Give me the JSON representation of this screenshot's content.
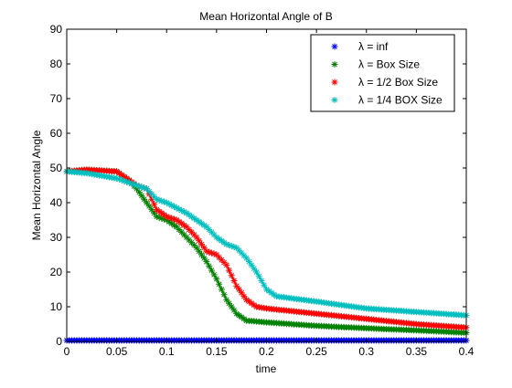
{
  "chart_data": {
    "type": "line",
    "title": "Mean Horizontal Angle of B",
    "xlabel": "time",
    "ylabel": "Mean Horizontal Angle",
    "xlim": [
      0,
      0.4
    ],
    "ylim": [
      0,
      90
    ],
    "xticks": [
      0,
      0.05,
      0.1,
      0.15,
      0.2,
      0.25,
      0.3,
      0.35,
      0.4
    ],
    "xtick_labels": [
      "0",
      "0.05",
      "0.1",
      "0.15",
      "0.2",
      "0.25",
      "0.3",
      "0.35",
      "0.4"
    ],
    "yticks": [
      0,
      10,
      20,
      30,
      40,
      50,
      60,
      70,
      80,
      90
    ],
    "ytick_labels": [
      "0",
      "10",
      "20",
      "30",
      "40",
      "50",
      "60",
      "70",
      "80",
      "90"
    ],
    "grid": false,
    "legend_position": "top-right",
    "marker": "*",
    "series": [
      {
        "name": "λ = inf",
        "color": "#0000ff",
        "x": [
          0,
          0.1,
          0.2,
          0.3,
          0.4
        ],
        "y": [
          0.3,
          0.3,
          0.3,
          0.3,
          0.3
        ]
      },
      {
        "name": "λ = Box Size",
        "color": "#008000",
        "x": [
          0,
          0.02,
          0.05,
          0.06,
          0.07,
          0.08,
          0.09,
          0.1,
          0.11,
          0.12,
          0.13,
          0.14,
          0.15,
          0.16,
          0.17,
          0.18,
          0.2,
          0.25,
          0.3,
          0.35,
          0.4
        ],
        "y": [
          49,
          49.5,
          49,
          47,
          44,
          40,
          36,
          35,
          33,
          30,
          27,
          23,
          18,
          12,
          8,
          6,
          5.5,
          4.5,
          3.8,
          3.2,
          2.5
        ]
      },
      {
        "name": "λ = 1/2 Box Size",
        "color": "#ff0000",
        "x": [
          0,
          0.02,
          0.05,
          0.06,
          0.07,
          0.08,
          0.09,
          0.1,
          0.11,
          0.12,
          0.13,
          0.14,
          0.15,
          0.16,
          0.17,
          0.18,
          0.19,
          0.2,
          0.25,
          0.3,
          0.35,
          0.4
        ],
        "y": [
          49,
          49.5,
          49,
          47,
          45,
          44,
          38,
          36,
          35,
          33,
          30,
          26,
          25,
          22,
          16,
          12,
          10,
          9.5,
          8,
          6.5,
          5,
          4
        ]
      },
      {
        "name": "λ = 1/4 BOX Size",
        "color": "#00bfbf",
        "x": [
          0,
          0.02,
          0.05,
          0.07,
          0.08,
          0.09,
          0.1,
          0.12,
          0.14,
          0.15,
          0.16,
          0.17,
          0.18,
          0.19,
          0.2,
          0.21,
          0.25,
          0.3,
          0.35,
          0.4
        ],
        "y": [
          49,
          48.5,
          47,
          45,
          44,
          41,
          40,
          37,
          33,
          30,
          28,
          27,
          24,
          20,
          15,
          13,
          11.5,
          9.5,
          8.5,
          7.5
        ]
      }
    ]
  }
}
